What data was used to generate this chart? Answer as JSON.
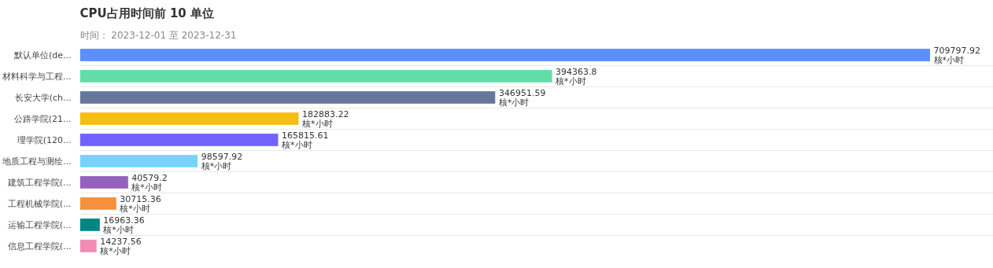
{
  "chart_data": {
    "type": "bar",
    "orientation": "horizontal",
    "title": "CPU占用时间前 10 单位",
    "subtitle": "时间： 2023-12-01 至 2023-12-31",
    "categories": [
      "默认单位(de...",
      "材料科学与工程...",
      "长安大学(ch...",
      "公路学院(21...",
      "理学院(120...",
      "地质工程与测绘...",
      "建筑工程学院(...",
      "工程机械学院(...",
      "运输工程学院(...",
      "信息工程学院(..."
    ],
    "values": [
      709797.92,
      394363.8,
      346951.59,
      182883.22,
      165815.61,
      98597.92,
      40579.2,
      30715.36,
      16963.36,
      14237.56
    ],
    "colors": [
      "#5b8ff9",
      "#61ddaa",
      "#65789b",
      "#f6bd16",
      "#7262fd",
      "#78d3f8",
      "#9661bc",
      "#f6903d",
      "#008685",
      "#f08bb4"
    ],
    "value_labels": [
      "709797.92\n核*小时",
      "394363.8\n核*小时",
      "346951.59\n核*小时",
      "182883.22\n核*小时",
      "165815.61\n核*小时",
      "98597.92\n核*小时",
      "40579.2\n核*小时",
      "30715.36\n核*小时",
      "16963.36\n核*小时",
      "14237.56\n核*小时"
    ],
    "grid": "y"
  }
}
